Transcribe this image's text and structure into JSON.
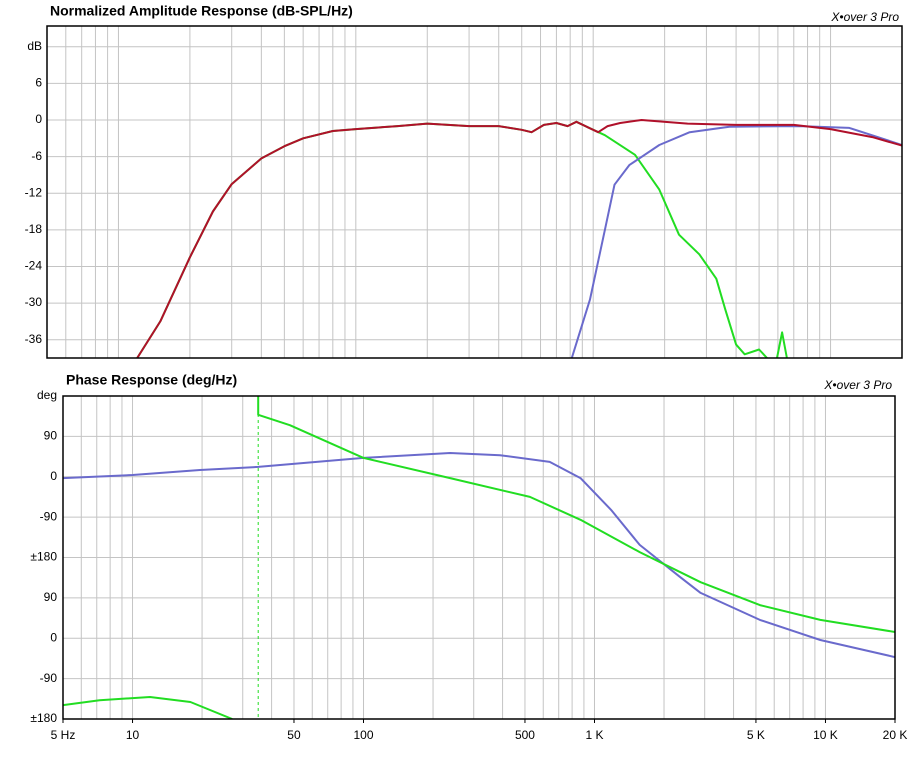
{
  "chart_data": [
    {
      "type": "line",
      "title": "Normalized Amplitude Response (dB-SPL/Hz)",
      "annotation": "X•over 3 Pro",
      "log_x": true,
      "minor_grid": true,
      "grid": true,
      "xlim": [
        5,
        20000
      ],
      "ylim": [
        -39,
        15.4
      ],
      "yticks": [
        {
          "value": 12,
          "label": "dB"
        },
        6,
        0,
        -6,
        -12,
        -18,
        -24,
        -30,
        -36
      ],
      "series": [
        {
          "color": "#22dd22",
          "x": [
            12,
            15,
            20,
            25,
            30,
            40,
            50,
            60,
            80,
            100,
            150,
            200,
            300,
            400,
            500,
            550,
            620,
            700,
            780,
            850,
            950,
            1120,
            1500,
            1900,
            2300,
            2800,
            3300,
            3600,
            4000,
            4350,
            5000,
            5400,
            5700,
            5950,
            6250,
            6550
          ],
          "values": [
            -39,
            -33,
            -22.5,
            -15,
            -10.5,
            -6.3,
            -4.3,
            -3,
            -1.8,
            -1.5,
            -1,
            -0.6,
            -1,
            -1,
            -1.6,
            -2,
            -0.8,
            -0.5,
            -1,
            -0.3,
            -1.2,
            -2.5,
            -5.7,
            -11.4,
            -18.8,
            -22,
            -26,
            -31,
            -36.8,
            -38.4,
            -37.6,
            -39,
            null,
            -39,
            -34.8,
            -39
          ]
        },
        {
          "color": "#6a6acc",
          "x": [
            813,
            970,
            1120,
            1230,
            1420,
            1900,
            2550,
            3750,
            7400,
            12000,
            20000
          ],
          "values": [
            -39,
            -29.4,
            -18,
            -10.6,
            -7.4,
            -4.1,
            -2,
            -1.1,
            -1,
            -1.3,
            -4.1
          ]
        },
        {
          "color": "#b0102a",
          "x": [
            12,
            15,
            20,
            25,
            30,
            40,
            50,
            60,
            80,
            100,
            150,
            200,
            300,
            400,
            500,
            550,
            620,
            700,
            780,
            850,
            950,
            1050,
            1150,
            1300,
            1600,
            2500,
            4000,
            7000,
            10000,
            15000,
            20000
          ],
          "values": [
            -39,
            -33,
            -22.5,
            -15,
            -10.5,
            -6.3,
            -4.3,
            -3,
            -1.8,
            -1.5,
            -1,
            -0.6,
            -1,
            -1,
            -1.6,
            -2,
            -0.8,
            -0.5,
            -1,
            -0.3,
            -1.2,
            -2,
            -1,
            -0.5,
            0,
            -0.6,
            -0.8,
            -0.8,
            -1.5,
            -2.8,
            -4.2
          ]
        }
      ]
    },
    {
      "type": "line",
      "title": "Phase Response (deg/Hz)",
      "annotation": "X•over 3 Pro",
      "log_x": true,
      "minor_grid": true,
      "grid": true,
      "xlim": [
        5,
        20000
      ],
      "ylim": [
        -540,
        180
      ],
      "xticks": [
        {
          "value": 5,
          "label": "5 Hz"
        },
        10,
        50,
        100,
        500,
        {
          "value": 1000,
          "label": "1 K"
        },
        {
          "value": 5000,
          "label": "5 K"
        },
        {
          "value": 10000,
          "label": "10 K"
        },
        {
          "value": 20000,
          "label": "20 K"
        }
      ],
      "yticks": [
        {
          "value": 180,
          "label": "deg"
        },
        90,
        0,
        -90,
        {
          "value": -180,
          "label": "±180"
        },
        {
          "value": -270,
          "label": "90"
        },
        {
          "value": -360,
          "label": "0"
        },
        {
          "value": -450,
          "label": "-90"
        },
        {
          "value": -540,
          "label": "±180"
        }
      ],
      "series": [
        {
          "color": "#6a6acc",
          "x": [
            5,
            10,
            19.6,
            35,
            100,
            237,
            390,
            640,
            870,
            1180,
            1570,
            2340,
            2880,
            5200,
            9500,
            20000
          ],
          "values": [
            -3,
            4,
            15,
            22,
            42,
            53,
            48,
            33,
            -3,
            -74,
            -152,
            -223,
            -259,
            -319,
            -364,
            -402
          ]
        },
        {
          "color": "#22dd22",
          "x": [
            5,
            7.2,
            11.9,
            17.8,
            27,
            30,
            35,
            35,
            48,
            100,
            237,
            525,
            870,
            1570,
            2880,
            5200,
            9500,
            20000
          ],
          "values": [
            -509,
            -498,
            -491,
            -502,
            -540,
            null,
            180,
            138,
            115,
            42,
            -3,
            -45,
            -96,
            -168,
            -235,
            -286,
            -319,
            -346
          ]
        }
      ]
    }
  ]
}
